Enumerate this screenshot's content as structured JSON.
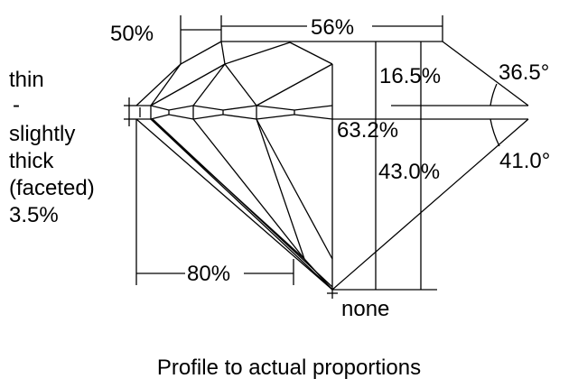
{
  "diagram": {
    "title": "Profile to actual proportions",
    "girdle_labels": [
      "thin",
      "-",
      "slightly",
      "thick",
      "(faceted)",
      "3.5%"
    ],
    "crown_height_ratio": "50%",
    "table": "56%",
    "crown_height": "16.5%",
    "crown_angle": "36.5°",
    "total_depth": "63.2%",
    "pavilion_depth": "43.0%",
    "pavilion_angle": "41.0°",
    "lower_half_length": "80%",
    "culet": "none",
    "line_color": "#000000",
    "background": "#ffffff"
  }
}
